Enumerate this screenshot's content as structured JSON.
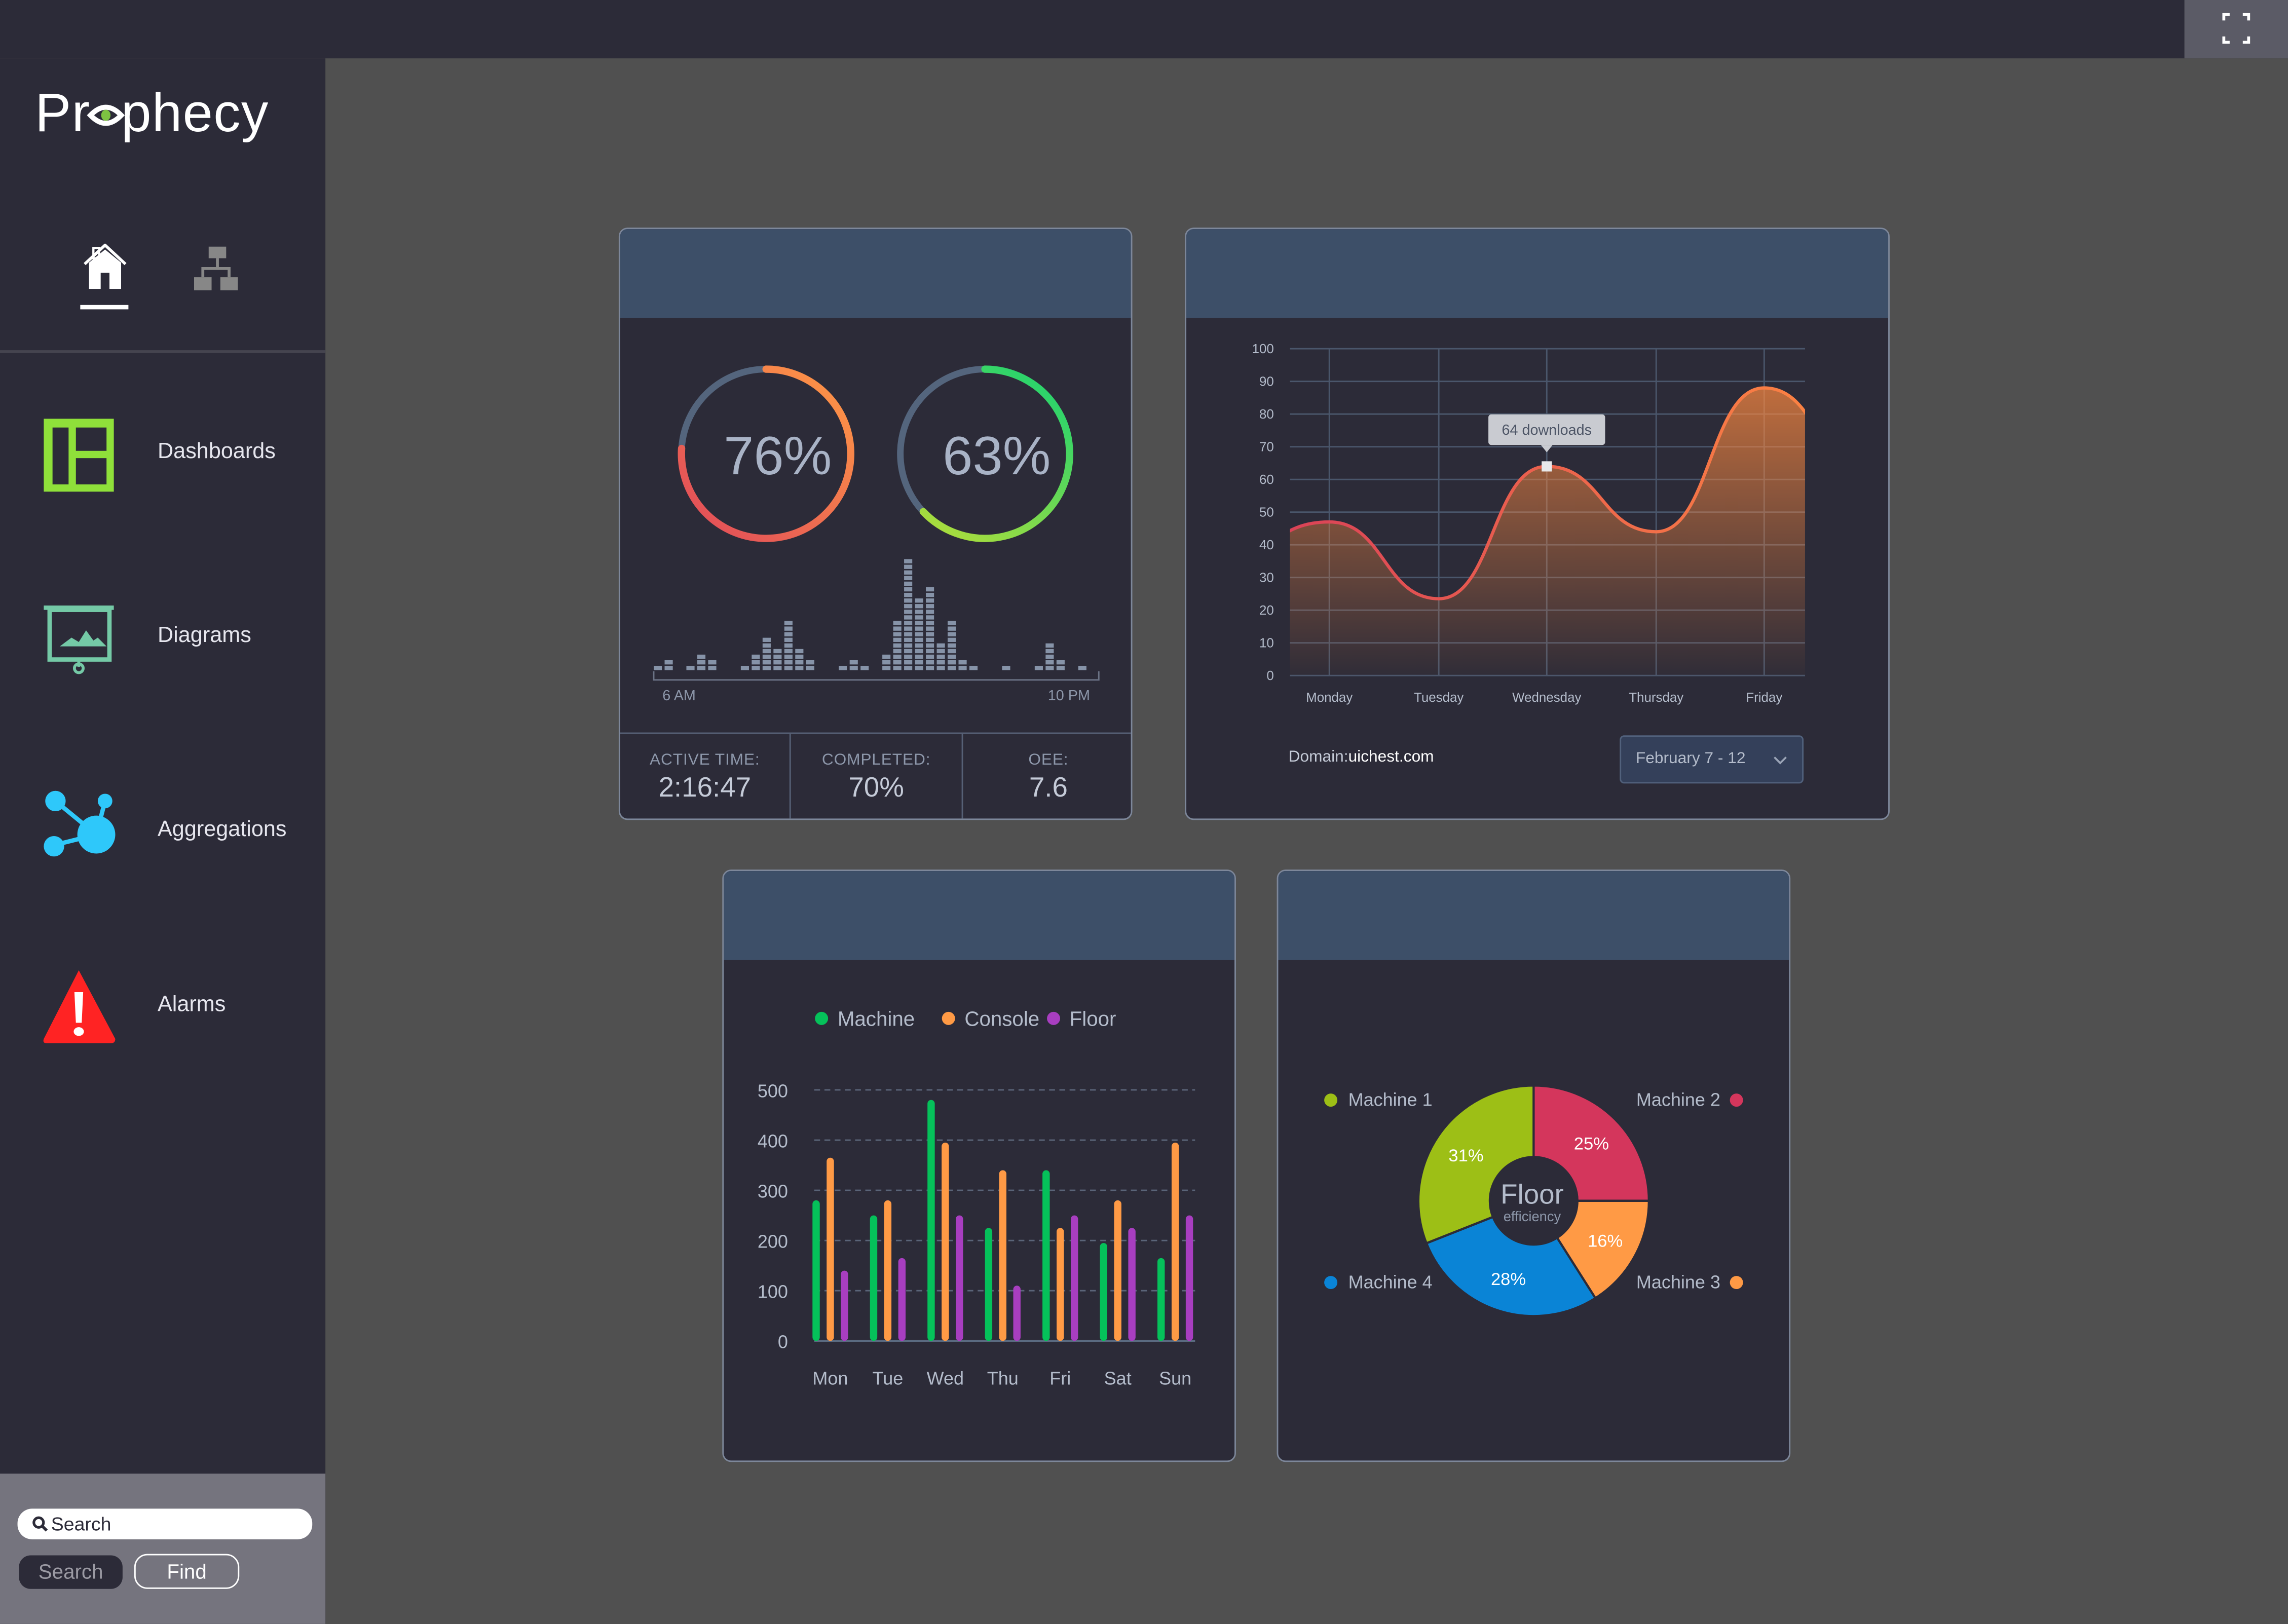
{
  "app": {
    "brand": "Prophecy",
    "accent": "#7dc242"
  },
  "topbar": {
    "expand_icon": "fullscreen-icon"
  },
  "sidebar": {
    "tabs": [
      {
        "icon": "home-icon",
        "active": true
      },
      {
        "icon": "sitemap-icon",
        "active": false
      }
    ],
    "items": [
      {
        "label": "Dashboards",
        "icon": "dashboard-icon",
        "color": "#8fe03a"
      },
      {
        "label": "Diagrams",
        "icon": "presentation-icon",
        "color": "#74c9a6"
      },
      {
        "label": "Aggregations",
        "icon": "molecule-icon",
        "color": "#2ec8fa"
      },
      {
        "label": "Alarms",
        "icon": "warning-icon",
        "color": "#ff2323"
      }
    ],
    "search": {
      "placeholder": "Search",
      "search_button": "Search",
      "find_button": "Find"
    }
  },
  "card1": {
    "gauges": [
      {
        "value": 76,
        "label": "76%",
        "colors": [
          "#ff9a45",
          "#e0485a"
        ]
      },
      {
        "value": 63,
        "label": "63%",
        "colors": [
          "#2ed46a",
          "#b2dd3a"
        ]
      }
    ],
    "activity": {
      "values": [
        1,
        2,
        0,
        1,
        3,
        2,
        0,
        0,
        1,
        3,
        6,
        4,
        9,
        4,
        2,
        0,
        0,
        1,
        2,
        1,
        0,
        3,
        9,
        20,
        13,
        15,
        5,
        9,
        2,
        1,
        0,
        0,
        1,
        0,
        0,
        1,
        5,
        2,
        0,
        1
      ],
      "start_label": "6 AM",
      "end_label": "10 PM"
    },
    "stats": [
      {
        "label": "ACTIVE TIME:",
        "value": "2:16:47"
      },
      {
        "label": "COMPLETED:",
        "value": "70%"
      },
      {
        "label": "OEE:",
        "value": "7.6"
      }
    ]
  },
  "card2": {
    "domain_label": "Domain:",
    "domain_value": "uichest.com",
    "date_range": "February 7 - 12",
    "tooltip": "64 downloads"
  },
  "chart_data": [
    {
      "type": "area",
      "categories": [
        "Monday",
        "Tuesday",
        "Wednesday",
        "Thursday",
        "Friday"
      ],
      "values": [
        47,
        23.5,
        64,
        44,
        88
      ],
      "ylim": [
        0,
        100
      ],
      "yticks": [
        "0",
        "10",
        "20",
        "30",
        "40",
        "50",
        "60",
        "70",
        "80",
        "90",
        "100"
      ],
      "grid": true,
      "colors": [
        "#d63a5a",
        "#ff8a40"
      ]
    },
    {
      "type": "bar",
      "categories": [
        "Mon",
        "Tue",
        "Wed",
        "Thu",
        "Fri",
        "Sat",
        "Sun"
      ],
      "series": [
        {
          "name": "Machine",
          "color": "#05c15a",
          "values": [
            280,
            250,
            480,
            225,
            340,
            195,
            165
          ]
        },
        {
          "name": "Console",
          "color": "#ff9a45",
          "values": [
            365,
            280,
            395,
            340,
            225,
            280,
            395
          ]
        },
        {
          "name": "Floor",
          "color": "#a83ec0",
          "values": [
            140,
            165,
            250,
            110,
            250,
            225,
            250
          ]
        }
      ],
      "ylim": [
        0,
        500
      ],
      "yticks": [
        "0",
        "100",
        "200",
        "300",
        "400",
        "500"
      ],
      "grid": true,
      "legend": "top"
    },
    {
      "type": "pie",
      "center_title": "Floor",
      "center_subtitle": "efficiency",
      "slices": [
        {
          "name": "Machine 2",
          "value": 25,
          "label": "25%",
          "color": "#d4365c"
        },
        {
          "name": "Machine 3",
          "value": 16,
          "label": "16%",
          "color": "#ff9a45"
        },
        {
          "name": "Machine 4",
          "value": 28,
          "label": "28%",
          "color": "#0a84d6"
        },
        {
          "name": "Machine 1",
          "value": 31,
          "label": "31%",
          "color": "#9dbf16"
        }
      ]
    }
  ]
}
